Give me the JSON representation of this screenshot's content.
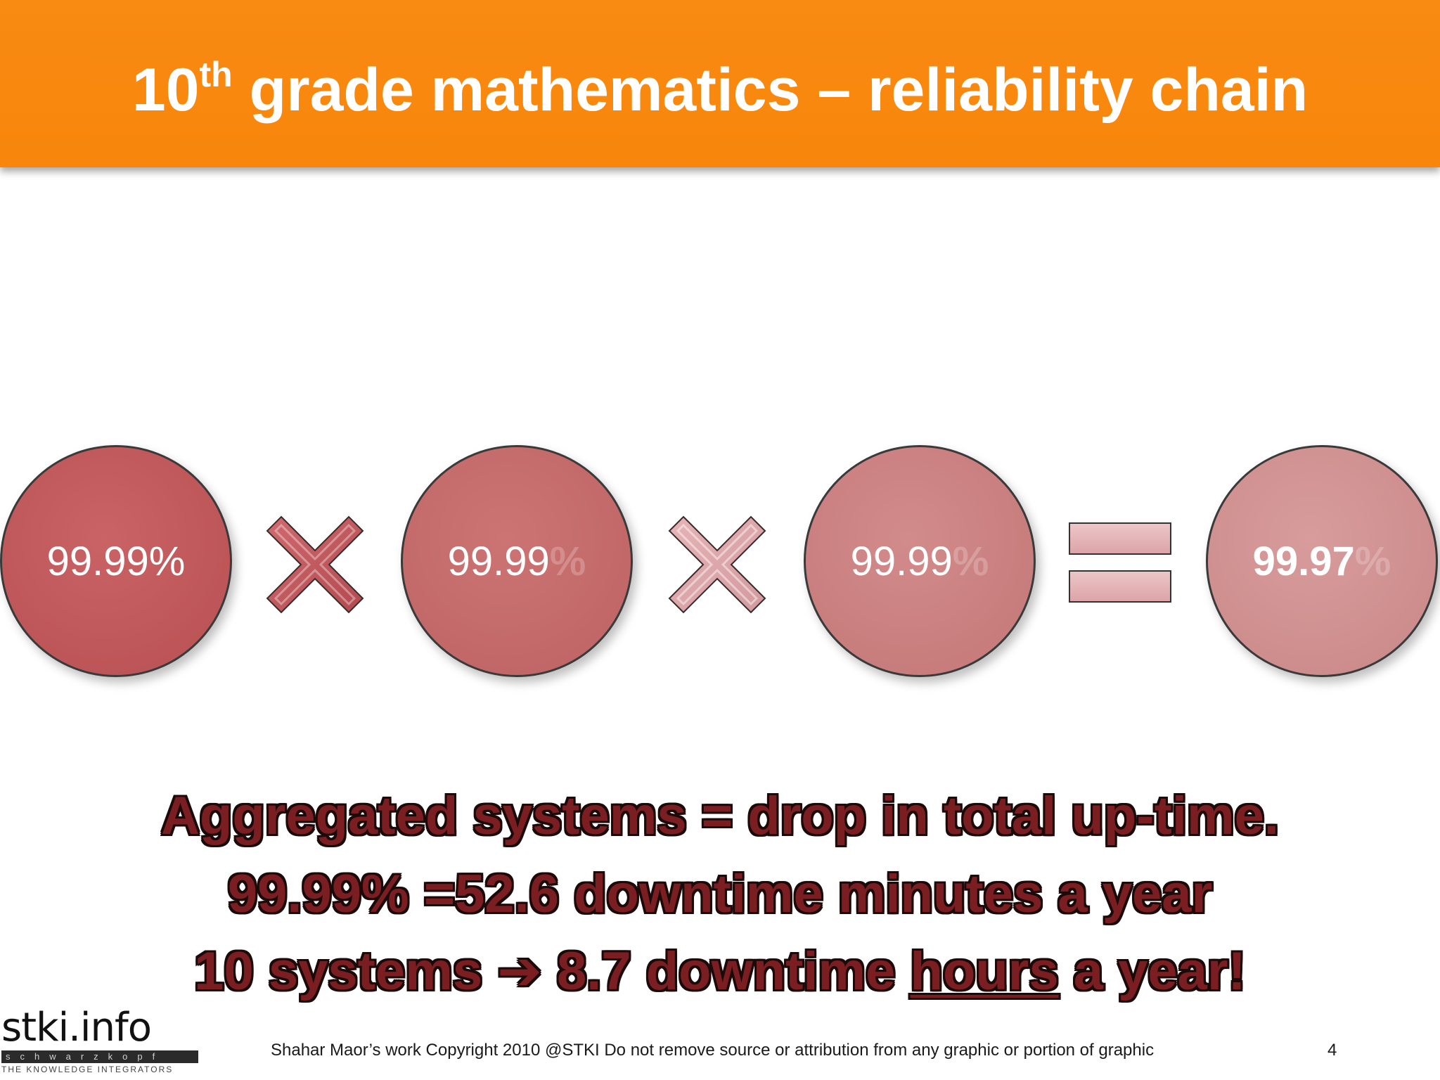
{
  "header": {
    "title_pre": "10",
    "title_sup": "th",
    "title_rest": " grade mathematics – reliability chain"
  },
  "chain": {
    "c1": {
      "value": "99.99%",
      "ghost": ""
    },
    "c2": {
      "value": "99.99",
      "ghost": "%"
    },
    "c3": {
      "value": "99.99",
      "ghost": "%"
    },
    "c4": {
      "value": "99.97",
      "ghost": "%"
    }
  },
  "summary": {
    "line1": "Aggregated systems = drop in total up-time.",
    "line2": "99.99% =52.6 downtime minutes a year",
    "line3_a": "10 systems ",
    "line3_arrow": "➔",
    "line3_b": " 8.7 downtime ",
    "line3_under": "hours",
    "line3_c": " a year!"
  },
  "logo": {
    "main": "stki.info",
    "bar": "schwarzkopf",
    "tagline": "THE KNOWLEDGE INTEGRATORS"
  },
  "footer": {
    "text": "Shahar Maor’s work  Copyright 2010 @STKI    Do not remove source or attribution from any graphic or portion of graphic",
    "page": "4"
  },
  "colors": {
    "header": "#f7860b",
    "headline_text": "#7a1e22"
  }
}
